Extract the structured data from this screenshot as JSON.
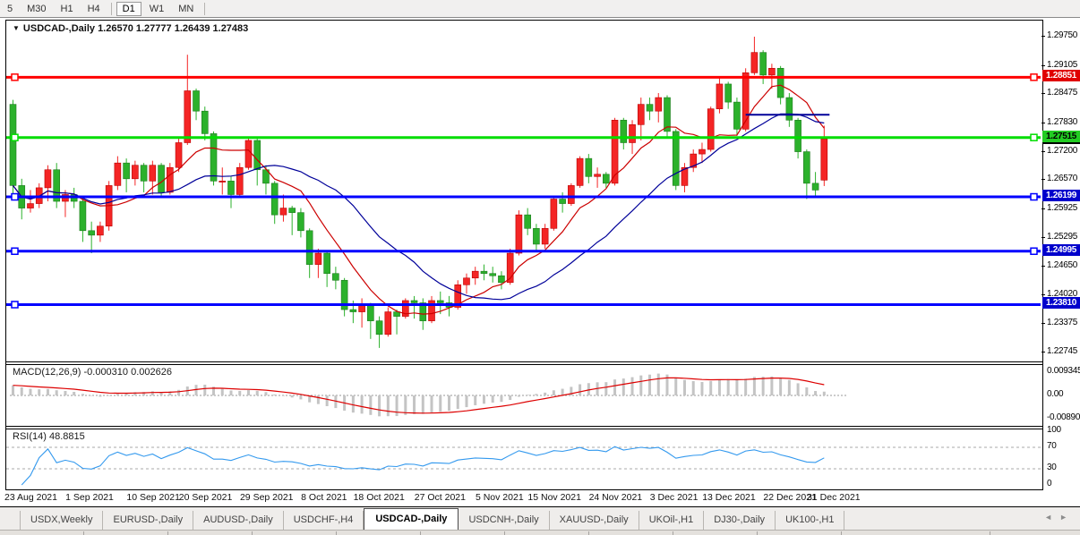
{
  "toolbar": {
    "buttons": [
      "5",
      "M30",
      "H1",
      "H4",
      "D1",
      "W1",
      "MN"
    ],
    "active": "D1",
    "separators_after": [
      "H4",
      "MN"
    ]
  },
  "chart": {
    "title": "USDCAD-,Daily",
    "ohlc": "1.26570 1.27777 1.26439 1.27483",
    "dropdown_icon": "▼"
  },
  "chart_data": {
    "type": "candlestick",
    "symbol": "USDCAD-",
    "timeframe": "Daily",
    "title": "USDCAD-,Daily 1.26570 1.27777 1.26439 1.27483",
    "last_candle": {
      "open": 1.2657,
      "high": 1.27777,
      "low": 1.26439,
      "close": 1.27483
    },
    "colors": {
      "up": "#f42525",
      "down": "#2cb12c",
      "ma_fast": "#cc0000",
      "ma_slow": "#000099",
      "hline_red": "#ff0000",
      "hline_green": "#00dd00",
      "hline_blue": "#0000ff",
      "macd_hist": "#c4c4c4",
      "macd_signal": "#dd0000",
      "rsi_line": "#3399ee"
    },
    "y_axis_ticks": [
      "1.29750",
      "1.29105",
      "1.28475",
      "1.27830",
      "1.27200",
      "1.26570",
      "1.25925",
      "1.25295",
      "1.24650",
      "1.24020",
      "1.23375",
      "1.22745"
    ],
    "ylim": [
      1.22745,
      1.2975
    ],
    "h_lines": [
      {
        "price": 1.28851,
        "label": "1.28851",
        "color": "#ff0000",
        "badge_bg": "#e00000",
        "badge_fg": "#ffffff",
        "right_marker": true
      },
      {
        "price": 1.27515,
        "label": "1.27515",
        "color": "#00dd00",
        "badge_bg": "#22cc22",
        "badge_fg": "#000000",
        "right_marker": true,
        "bid_underline": true
      },
      {
        "price": 1.26199,
        "label": "1.26199",
        "color": "#0000ff",
        "badge_bg": "#0000cc",
        "badge_fg": "#ffffff",
        "right_marker": true
      },
      {
        "price": 1.24995,
        "label": "1.24995",
        "color": "#0000ff",
        "badge_bg": "#0000cc",
        "badge_fg": "#ffffff",
        "right_marker": true
      },
      {
        "price": 1.2381,
        "label": "1.23810",
        "color": "#0000ff",
        "badge_bg": "#0000cc",
        "badge_fg": "#ffffff",
        "right_marker": false
      }
    ],
    "trendline": {
      "price": 1.2802,
      "from_candle": 84,
      "to_candle": 93,
      "color": "#000099"
    },
    "moving_averages": {
      "fast_period": 8,
      "slow_period": 20
    },
    "candles": [
      [
        "23 Aug",
        1.2825,
        1.2835,
        1.2615,
        1.2645
      ],
      [
        "24 Aug",
        1.2645,
        1.266,
        1.257,
        1.2595
      ],
      [
        "25 Aug",
        1.2595,
        1.2635,
        1.2585,
        1.2605
      ],
      [
        "26 Aug",
        1.2605,
        1.265,
        1.2595,
        1.264
      ],
      [
        "27 Aug",
        1.264,
        1.269,
        1.261,
        1.268
      ],
      [
        "30 Aug",
        1.268,
        1.2695,
        1.2595,
        1.261
      ],
      [
        "31 Aug",
        1.261,
        1.2635,
        1.2575,
        1.2625
      ],
      [
        "1 Sep",
        1.2625,
        1.264,
        1.2595,
        1.261
      ],
      [
        "2 Sep",
        1.261,
        1.262,
        1.252,
        1.2545
      ],
      [
        "3 Sep",
        1.2545,
        1.2565,
        1.2495,
        1.2535
      ],
      [
        "6 Sep",
        1.2535,
        1.2565,
        1.252,
        1.2555
      ],
      [
        "7 Sep",
        1.2555,
        1.2655,
        1.2545,
        1.2645
      ],
      [
        "8 Sep",
        1.2645,
        1.271,
        1.2635,
        1.2695
      ],
      [
        "9 Sep",
        1.2695,
        1.2705,
        1.263,
        1.266
      ],
      [
        "10 Sep",
        1.266,
        1.27,
        1.2645,
        1.269
      ],
      [
        "13 Sep",
        1.269,
        1.2695,
        1.263,
        1.2655
      ],
      [
        "14 Sep",
        1.2655,
        1.27,
        1.2625,
        1.269
      ],
      [
        "15 Sep",
        1.269,
        1.2695,
        1.262,
        1.263
      ],
      [
        "16 Sep",
        1.263,
        1.2695,
        1.2625,
        1.2685
      ],
      [
        "17 Sep",
        1.2685,
        1.275,
        1.2675,
        1.274
      ],
      [
        "20 Sep",
        1.274,
        1.2935,
        1.2735,
        1.2855
      ],
      [
        "21 Sep",
        1.2855,
        1.286,
        1.279,
        1.281
      ],
      [
        "22 Sep",
        1.281,
        1.282,
        1.2745,
        1.276
      ],
      [
        "23 Sep",
        1.276,
        1.2765,
        1.2645,
        1.2655
      ],
      [
        "24 Sep",
        1.2655,
        1.2685,
        1.2625,
        1.2655
      ],
      [
        "27 Sep",
        1.2655,
        1.2665,
        1.2595,
        1.2625
      ],
      [
        "28 Sep",
        1.2625,
        1.2695,
        1.262,
        1.2685
      ],
      [
        "29 Sep",
        1.2685,
        1.275,
        1.268,
        1.2745
      ],
      [
        "30 Sep",
        1.2745,
        1.275,
        1.2645,
        1.268
      ],
      [
        "1 Oct",
        1.268,
        1.269,
        1.2625,
        1.265
      ],
      [
        "4 Oct",
        1.265,
        1.2655,
        1.256,
        1.258
      ],
      [
        "5 Oct",
        1.258,
        1.2625,
        1.2565,
        1.2595
      ],
      [
        "6 Oct",
        1.2595,
        1.26,
        1.2535,
        1.2585
      ],
      [
        "7 Oct",
        1.2585,
        1.2595,
        1.253,
        1.2545
      ],
      [
        "8 Oct",
        1.2545,
        1.255,
        1.244,
        1.247
      ],
      [
        "11 Oct",
        1.247,
        1.2505,
        1.244,
        1.2495
      ],
      [
        "12 Oct",
        1.2495,
        1.25,
        1.242,
        1.245
      ],
      [
        "13 Oct",
        1.245,
        1.2465,
        1.2415,
        1.2435
      ],
      [
        "14 Oct",
        1.2435,
        1.244,
        1.2355,
        1.237
      ],
      [
        "15 Oct",
        1.237,
        1.239,
        1.234,
        1.2365
      ],
      [
        "18 Oct",
        1.2365,
        1.2395,
        1.233,
        1.238
      ],
      [
        "19 Oct",
        1.238,
        1.2385,
        1.2305,
        1.2345
      ],
      [
        "20 Oct",
        1.2345,
        1.2355,
        1.2285,
        1.2315
      ],
      [
        "21 Oct",
        1.2315,
        1.2375,
        1.231,
        1.2365
      ],
      [
        "22 Oct",
        1.2365,
        1.237,
        1.2315,
        1.2355
      ],
      [
        "25 Oct",
        1.2355,
        1.2395,
        1.235,
        1.239
      ],
      [
        "26 Oct",
        1.239,
        1.24,
        1.235,
        1.2385
      ],
      [
        "27 Oct",
        1.2385,
        1.2395,
        1.2325,
        1.2345
      ],
      [
        "28 Oct",
        1.2345,
        1.24,
        1.234,
        1.239
      ],
      [
        "29 Oct",
        1.239,
        1.241,
        1.236,
        1.2385
      ],
      [
        "1 Nov",
        1.2385,
        1.24,
        1.2355,
        1.2375
      ],
      [
        "2 Nov",
        1.2375,
        1.2435,
        1.237,
        1.2425
      ],
      [
        "3 Nov",
        1.2425,
        1.245,
        1.2405,
        1.244
      ],
      [
        "4 Nov",
        1.244,
        1.2465,
        1.2425,
        1.2455
      ],
      [
        "5 Nov",
        1.2455,
        1.247,
        1.2435,
        1.245
      ],
      [
        "8 Nov",
        1.245,
        1.2465,
        1.243,
        1.2445
      ],
      [
        "9 Nov",
        1.2445,
        1.2455,
        1.2415,
        1.243
      ],
      [
        "10 Nov",
        1.243,
        1.2505,
        1.2425,
        1.2495
      ],
      [
        "11 Nov",
        1.2495,
        1.259,
        1.249,
        1.258
      ],
      [
        "12 Nov",
        1.258,
        1.2595,
        1.2535,
        1.255
      ],
      [
        "15 Nov",
        1.255,
        1.256,
        1.25,
        1.2515
      ],
      [
        "16 Nov",
        1.2515,
        1.256,
        1.2505,
        1.255
      ],
      [
        "17 Nov",
        1.255,
        1.262,
        1.2545,
        1.2615
      ],
      [
        "18 Nov",
        1.2615,
        1.263,
        1.2585,
        1.2605
      ],
      [
        "19 Nov",
        1.2605,
        1.265,
        1.26,
        1.2645
      ],
      [
        "22 Nov",
        1.2645,
        1.271,
        1.264,
        1.2705
      ],
      [
        "23 Nov",
        1.2705,
        1.2715,
        1.265,
        1.2665
      ],
      [
        "24 Nov",
        1.2665,
        1.2685,
        1.264,
        1.267
      ],
      [
        "25 Nov",
        1.267,
        1.2675,
        1.264,
        1.265
      ],
      [
        "26 Nov",
        1.265,
        1.2795,
        1.2645,
        1.279
      ],
      [
        "29 Nov",
        1.279,
        1.2795,
        1.2725,
        1.274
      ],
      [
        "30 Nov",
        1.274,
        1.279,
        1.2715,
        1.278
      ],
      [
        "1 Dec",
        1.278,
        1.284,
        1.2745,
        1.2825
      ],
      [
        "2 Dec",
        1.2825,
        1.284,
        1.279,
        1.281
      ],
      [
        "3 Dec",
        1.281,
        1.285,
        1.2785,
        1.284
      ],
      [
        "6 Dec",
        1.284,
        1.2845,
        1.275,
        1.2765
      ],
      [
        "7 Dec",
        1.2765,
        1.277,
        1.2635,
        1.2645
      ],
      [
        "8 Dec",
        1.2645,
        1.2695,
        1.263,
        1.2685
      ],
      [
        "9 Dec",
        1.2685,
        1.2725,
        1.2675,
        1.2715
      ],
      [
        "10 Dec",
        1.2715,
        1.274,
        1.2695,
        1.2725
      ],
      [
        "13 Dec",
        1.2725,
        1.282,
        1.272,
        1.2815
      ],
      [
        "14 Dec",
        1.2815,
        1.2885,
        1.2805,
        1.287
      ],
      [
        "15 Dec",
        1.287,
        1.2875,
        1.2815,
        1.283
      ],
      [
        "16 Dec",
        1.283,
        1.284,
        1.2755,
        1.277
      ],
      [
        "17 Dec",
        1.277,
        1.2905,
        1.2765,
        1.2895
      ],
      [
        "20 Dec",
        1.2895,
        1.2975,
        1.289,
        1.294
      ],
      [
        "21 Dec",
        1.294,
        1.2945,
        1.287,
        1.289
      ],
      [
        "22 Dec",
        1.289,
        1.2915,
        1.286,
        1.2905
      ],
      [
        "23 Dec",
        1.2905,
        1.291,
        1.2825,
        1.284
      ],
      [
        "28 Dec",
        1.284,
        1.285,
        1.2775,
        1.279
      ],
      [
        "29 Dec",
        1.279,
        1.2795,
        1.2705,
        1.272
      ],
      [
        "30 Dec",
        1.272,
        1.2725,
        1.2615,
        1.265
      ],
      [
        "31 Dec",
        1.265,
        1.2675,
        1.262,
        1.2635
      ],
      [
        "4 Jan",
        1.2657,
        1.27777,
        1.26439,
        1.27483
      ]
    ],
    "date_labels": [
      {
        "text": "23 Aug 2021",
        "candle": 0
      },
      {
        "text": "1 Sep 2021",
        "candle": 7
      },
      {
        "text": "10 Sep 2021",
        "candle": 14
      },
      {
        "text": "20 Sep 2021",
        "candle": 20
      },
      {
        "text": "29 Sep 2021",
        "candle": 27
      },
      {
        "text": "8 Oct 2021",
        "candle": 34
      },
      {
        "text": "18 Oct 2021",
        "candle": 40
      },
      {
        "text": "27 Oct 2021",
        "candle": 47
      },
      {
        "text": "5 Nov 2021",
        "candle": 54
      },
      {
        "text": "15 Nov 2021",
        "candle": 60
      },
      {
        "text": "24 Nov 2021",
        "candle": 67
      },
      {
        "text": "3 Dec 2021",
        "candle": 74
      },
      {
        "text": "13 Dec 2021",
        "candle": 80
      },
      {
        "text": "22 Dec 2021",
        "candle": 87
      },
      {
        "text": "31 Dec 2021",
        "candle": 92
      }
    ],
    "indicators": {
      "macd": {
        "label": "MACD(12,26,9)",
        "values_text": "-0.000310 0.002626",
        "params": [
          12,
          26,
          9
        ],
        "axis": [
          "0.009345",
          "0.00",
          "-0.00890"
        ]
      },
      "rsi": {
        "label": "RSI(14)",
        "value_text": "48.8815",
        "period": 14,
        "levels": [
          70,
          30
        ],
        "axis": [
          "100",
          "70",
          "30",
          "0"
        ]
      }
    }
  },
  "tabs": {
    "items": [
      "USDX,Weekly",
      "EURUSD-,Daily",
      "AUDUSD-,Daily",
      "USDCHF-,H4",
      "USDCAD-,Daily",
      "USDCNH-,Daily",
      "XAUUSD-,Daily",
      "UKOil-,H1",
      "DJ30-,Daily",
      "UK100-,H1"
    ],
    "active": "USDCAD-,Daily",
    "scroll_left_icon": "◄",
    "scroll_right_icon": "►"
  }
}
